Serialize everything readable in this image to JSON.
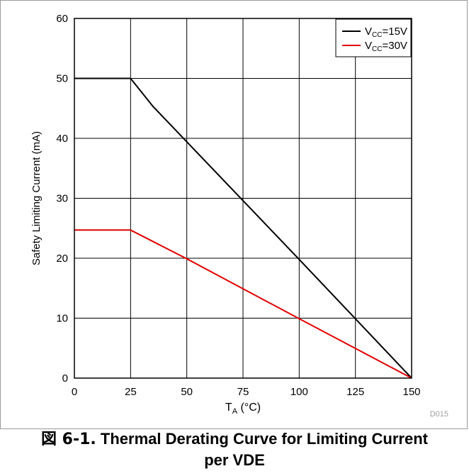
{
  "chart_data": {
    "type": "line",
    "xlabel_main": "T",
    "xlabel_sub": "A",
    "xlabel_unit": " (°C)",
    "ylabel": "Safety Limiting Current (mA)",
    "xlim": [
      0,
      150
    ],
    "ylim": [
      0,
      60
    ],
    "xticks": [
      0,
      25,
      50,
      75,
      100,
      125,
      150
    ],
    "yticks": [
      0,
      10,
      20,
      30,
      40,
      50,
      60
    ],
    "grid": true,
    "legend_position": "top-right",
    "code": "D015",
    "series": [
      {
        "name_main": "V",
        "name_sub": "CC",
        "name_rest": "=15V",
        "color": "#000000",
        "points": [
          [
            0,
            50
          ],
          [
            25,
            50
          ],
          [
            35,
            45.3
          ],
          [
            100,
            19.8
          ],
          [
            150,
            0
          ]
        ]
      },
      {
        "name_main": "V",
        "name_sub": "CC",
        "name_rest": "=30V",
        "color": "#e00000",
        "points": [
          [
            0,
            24.7
          ],
          [
            25,
            24.7
          ],
          [
            50,
            19.9
          ],
          [
            100,
            9.9
          ],
          [
            150,
            0
          ]
        ]
      }
    ]
  },
  "caption": {
    "prefix": "図 6-1.",
    "line1": "Thermal Derating Curve for Limiting Current",
    "line2": "per VDE"
  }
}
